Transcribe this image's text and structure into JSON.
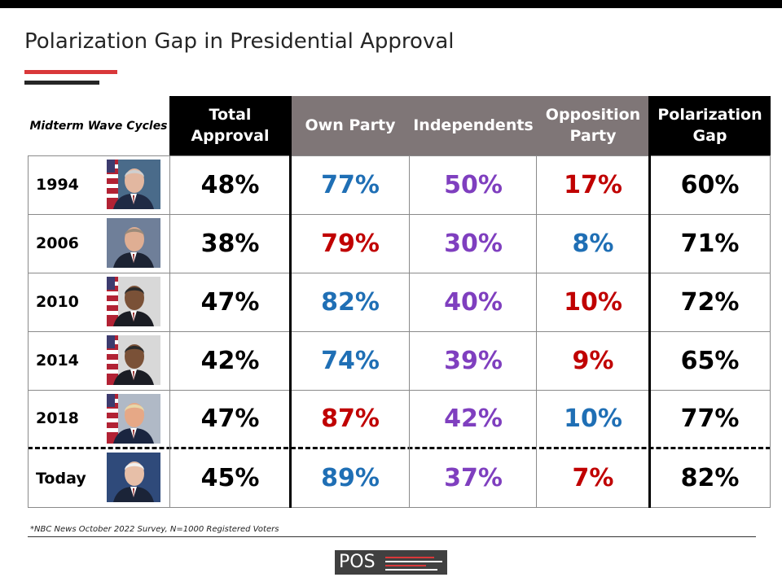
{
  "title": "Polarization Gap in Presidential Approval",
  "corner_label": "Midterm Wave Cycles",
  "footnote": "*NBC News October 2022 Survey, N=1000 Registered Voters",
  "logo_text": "POS",
  "colors": {
    "blue": "#1f6fb5",
    "red": "#c00000",
    "purple": "#7f3fbf",
    "black": "#000000"
  },
  "chart_data": {
    "type": "table",
    "title": "Polarization Gap in Presidential Approval",
    "columns": [
      "Total Approval",
      "Own Party",
      "Independents",
      "Opposition Party",
      "Polarization Gap"
    ],
    "rows": [
      {
        "year": "1994",
        "photo": "president-clinton-photo",
        "values": [
          "48%",
          "77%",
          "50%",
          "17%",
          "60%"
        ],
        "colors": [
          "black",
          "blue",
          "purple",
          "red",
          "black"
        ]
      },
      {
        "year": "2006",
        "photo": "president-bush-photo",
        "values": [
          "38%",
          "79%",
          "30%",
          "8%",
          "71%"
        ],
        "colors": [
          "black",
          "red",
          "purple",
          "blue",
          "black"
        ]
      },
      {
        "year": "2010",
        "photo": "president-obama-photo",
        "values": [
          "47%",
          "82%",
          "40%",
          "10%",
          "72%"
        ],
        "colors": [
          "black",
          "blue",
          "purple",
          "red",
          "black"
        ]
      },
      {
        "year": "2014",
        "photo": "president-obama-photo",
        "values": [
          "42%",
          "74%",
          "39%",
          "9%",
          "65%"
        ],
        "colors": [
          "black",
          "blue",
          "purple",
          "red",
          "black"
        ]
      },
      {
        "year": "2018",
        "photo": "president-trump-photo",
        "values": [
          "47%",
          "87%",
          "42%",
          "10%",
          "77%"
        ],
        "colors": [
          "black",
          "red",
          "purple",
          "blue",
          "black"
        ]
      },
      {
        "year": "Today",
        "photo": "president-biden-photo",
        "values": [
          "45%",
          "89%",
          "37%",
          "7%",
          "82%"
        ],
        "colors": [
          "black",
          "blue",
          "purple",
          "red",
          "black"
        ]
      }
    ]
  }
}
